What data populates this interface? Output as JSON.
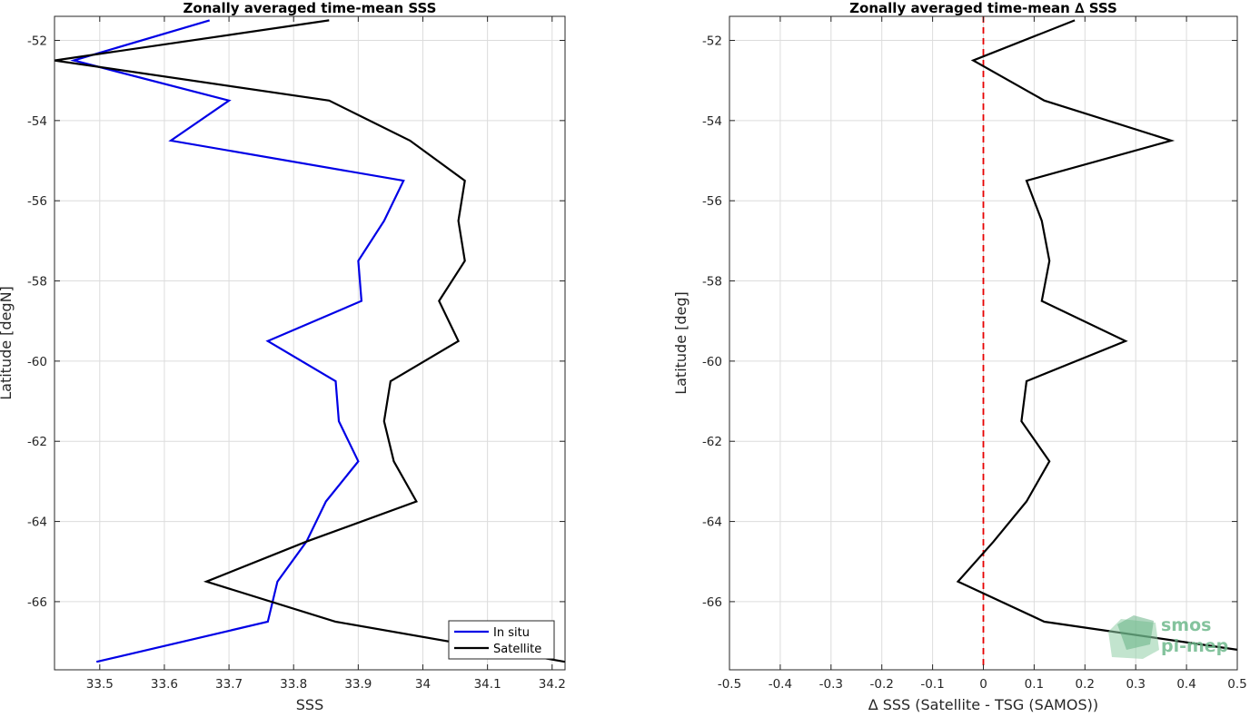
{
  "chart_data": [
    {
      "type": "line",
      "title": "Zonally averaged time-mean SSS",
      "xlabel": "SSS",
      "ylabel": "Latitude [degN]",
      "xlim": [
        33.43,
        34.22
      ],
      "ylim": [
        -67.7,
        -51.4
      ],
      "xticks": [
        33.5,
        33.6,
        33.7,
        33.8,
        33.9,
        34,
        34.1,
        34.2
      ],
      "xtick_labels": [
        "33.5",
        "33.6",
        "33.7",
        "33.8",
        "33.9",
        "34",
        "34.1",
        "34.2"
      ],
      "yticks": [
        -52,
        -54,
        -56,
        -58,
        -60,
        -62,
        -64,
        -66
      ],
      "ytick_labels": [
        "-52",
        "-54",
        "-56",
        "-58",
        "-60",
        "-62",
        "-64",
        "-66"
      ],
      "grid": true,
      "legend_position": "bottom-right",
      "series": [
        {
          "name": "In situ",
          "color": "#0000e6",
          "x": [
            33.67,
            33.46,
            33.7,
            33.61,
            33.97,
            33.94,
            33.9,
            33.905,
            33.76,
            33.865,
            33.87,
            33.9,
            33.85,
            33.82,
            33.775,
            33.76,
            33.495
          ],
          "y": [
            -51.5,
            -52.5,
            -53.5,
            -54.5,
            -55.5,
            -56.5,
            -57.5,
            -58.5,
            -59.5,
            -60.5,
            -61.5,
            -62.5,
            -63.5,
            -64.5,
            -65.5,
            -66.5,
            -67.5
          ]
        },
        {
          "name": "Satellite",
          "color": "#000000",
          "x": [
            33.855,
            33.43,
            33.855,
            33.98,
            34.065,
            34.055,
            34.065,
            34.025,
            34.055,
            33.95,
            33.94,
            33.955,
            33.99,
            33.82,
            33.665,
            33.865,
            34.22
          ],
          "y": [
            -51.5,
            -52.5,
            -53.5,
            -54.5,
            -55.5,
            -56.5,
            -57.5,
            -58.5,
            -59.5,
            -60.5,
            -61.5,
            -62.5,
            -63.5,
            -64.5,
            -65.5,
            -66.5,
            -67.5
          ]
        }
      ]
    },
    {
      "type": "line",
      "title": "Zonally averaged time-mean ∆ SSS",
      "xlabel": "∆ SSS (Satellite - TSG (SAMOS))",
      "ylabel": "Latitude [deg]",
      "xlim": [
        -0.5,
        0.5
      ],
      "ylim": [
        -67.7,
        -51.4
      ],
      "xticks": [
        -0.5,
        -0.4,
        -0.3,
        -0.2,
        -0.1,
        0,
        0.1,
        0.2,
        0.3,
        0.4,
        0.5
      ],
      "xtick_labels": [
        "-0.5",
        "-0.4",
        "-0.3",
        "-0.2",
        "-0.1",
        "0",
        "0.1",
        "0.2",
        "0.3",
        "0.4",
        "0.5"
      ],
      "yticks": [
        -52,
        -54,
        -56,
        -58,
        -60,
        -62,
        -64,
        -66
      ],
      "ytick_labels": [
        "-52",
        "-54",
        "-56",
        "-58",
        "-60",
        "-62",
        "-64",
        "-66"
      ],
      "grid": true,
      "reference_line": {
        "x": 0,
        "color": "#e60000",
        "style": "dashed"
      },
      "series": [
        {
          "color": "#000000",
          "x": [
            0.18,
            -0.02,
            0.12,
            0.37,
            0.085,
            0.115,
            0.13,
            0.115,
            0.28,
            0.085,
            0.075,
            0.13,
            0.085,
            0.02,
            -0.05,
            0.12,
            0.5
          ],
          "y": [
            -51.5,
            -52.5,
            -53.5,
            -54.5,
            -55.5,
            -56.5,
            -57.5,
            -58.5,
            -59.5,
            -60.5,
            -61.5,
            -62.5,
            -63.5,
            -64.5,
            -65.5,
            -66.5,
            -67.2
          ]
        }
      ]
    }
  ],
  "logo": {
    "line1": "smos",
    "line2": "pi-mep"
  }
}
